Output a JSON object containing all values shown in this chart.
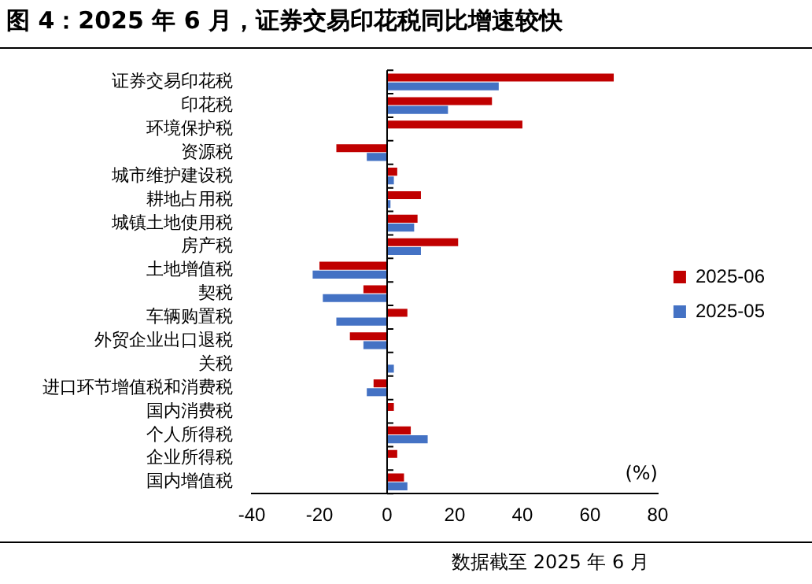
{
  "chart_data": {
    "type": "bar",
    "orientation": "horizontal",
    "title": "图 4：2025 年 6 月，证券交易印花税同比增速较快",
    "categories": [
      "证券交易印花税",
      "印花税",
      "环境保护税",
      "资源税",
      "城市维护建设税",
      "耕地占用税",
      "城镇土地使用税",
      "房产税",
      "土地增值税",
      "契税",
      "车辆购置税",
      "外贸企业出口退税",
      "关税",
      "进口环节增值税和消费税",
      "国内消费税",
      "个人所得税",
      "企业所得税",
      "国内增值税"
    ],
    "series": [
      {
        "name": "2025-06",
        "color": "#c00000",
        "values": [
          67,
          31,
          40,
          -15,
          3,
          10,
          9,
          21,
          -20,
          -7,
          6,
          -11,
          null,
          -4,
          2,
          7,
          3,
          5
        ]
      },
      {
        "name": "2025-05",
        "color": "#4472c4",
        "values": [
          33,
          18,
          null,
          -6,
          2,
          1,
          8,
          10,
          -22,
          -19,
          -15,
          -7,
          2,
          -6,
          null,
          12,
          null,
          6
        ]
      }
    ],
    "ref_lines": [
      {
        "axis": "x",
        "value": 0,
        "color": "#000000"
      }
    ],
    "xlim": [
      -40,
      80
    ],
    "xticks": [
      -40,
      -20,
      0,
      20,
      40,
      60,
      80
    ],
    "grid": false,
    "legend": "right",
    "annotations": [
      "(%)",
      "数据截至 2025 年 6 月"
    ]
  }
}
